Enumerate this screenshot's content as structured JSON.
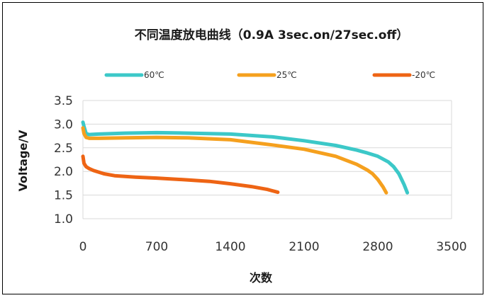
{
  "chart_data": {
    "type": "line",
    "title": "不同温度放电曲线（0.9A 3sec.on/27sec.off）",
    "xlabel": "次数",
    "ylabel": "Voltage/V",
    "xlim": [
      0,
      3500
    ],
    "ylim": [
      1.0,
      3.5
    ],
    "xticks": [
      "0",
      "700",
      "1400",
      "2100",
      "2800",
      "3500"
    ],
    "yticks": [
      "1.0",
      "1.5",
      "2.0",
      "2.5",
      "3.0",
      "3.5"
    ],
    "grid": "horizontal",
    "legend_position": "top",
    "series": [
      {
        "name": "60℃",
        "color": "#3cc8c8",
        "x": [
          0,
          10,
          30,
          60,
          150,
          400,
          700,
          1000,
          1400,
          1800,
          2100,
          2400,
          2600,
          2700,
          2800,
          2900,
          2950,
          3000,
          3050,
          3080
        ],
        "y": [
          3.04,
          2.95,
          2.8,
          2.78,
          2.79,
          2.81,
          2.82,
          2.81,
          2.79,
          2.73,
          2.65,
          2.55,
          2.45,
          2.39,
          2.32,
          2.2,
          2.1,
          1.95,
          1.72,
          1.55
        ]
      },
      {
        "name": "25℃",
        "color": "#f5a01e",
        "x": [
          0,
          10,
          30,
          60,
          150,
          400,
          700,
          1000,
          1400,
          1800,
          2100,
          2400,
          2600,
          2700,
          2750,
          2800,
          2850,
          2880
        ],
        "y": [
          2.92,
          2.8,
          2.72,
          2.7,
          2.7,
          2.71,
          2.72,
          2.71,
          2.67,
          2.56,
          2.47,
          2.32,
          2.15,
          2.03,
          1.95,
          1.83,
          1.67,
          1.55
        ]
      },
      {
        "name": "-20℃",
        "color": "#ee6414",
        "x": [
          0,
          10,
          30,
          60,
          100,
          200,
          300,
          500,
          700,
          1000,
          1200,
          1400,
          1600,
          1750,
          1850
        ],
        "y": [
          2.32,
          2.17,
          2.1,
          2.06,
          2.02,
          1.95,
          1.91,
          1.88,
          1.86,
          1.82,
          1.79,
          1.74,
          1.68,
          1.62,
          1.56
        ]
      }
    ]
  }
}
